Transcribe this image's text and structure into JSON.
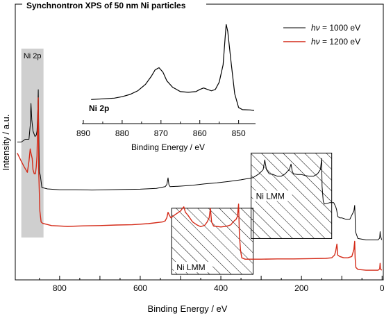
{
  "chart_data": {
    "type": "line",
    "title": "Synchnontron XPS of 50 nm Ni particles",
    "xlabel": "Binding Energy / eV",
    "ylabel": "Intensity / a.u.",
    "xlim": [
      910,
      -3
    ],
    "x_reversed": true,
    "ylim": [
      0,
      100
    ],
    "y_ticks_labeled": false,
    "x_ticks": [
      800,
      600,
      400,
      200,
      0
    ],
    "x_tick_labels": [
      "800",
      "600",
      "400",
      "200",
      "0"
    ],
    "legend_position": "top-right",
    "series": [
      {
        "name": "hν = 1000 eV",
        "name_prefix": "hν",
        "name_suffix": " = 1000 eV",
        "color": "#000000",
        "points": [
          [
            905,
            50
          ],
          [
            895,
            50
          ],
          [
            885,
            51
          ],
          [
            876,
            51
          ],
          [
            873,
            56
          ],
          [
            871,
            64
          ],
          [
            869,
            58
          ],
          [
            866,
            54
          ],
          [
            861,
            52
          ],
          [
            858,
            52.5
          ],
          [
            856,
            54
          ],
          [
            854,
            62
          ],
          [
            853,
            69
          ],
          [
            852,
            56
          ],
          [
            850,
            39
          ],
          [
            848,
            38
          ],
          [
            844,
            33.5
          ],
          [
            830,
            33
          ],
          [
            800,
            32.7
          ],
          [
            760,
            32.7
          ],
          [
            720,
            32.6
          ],
          [
            680,
            32.7
          ],
          [
            640,
            32.8
          ],
          [
            600,
            32.9
          ],
          [
            560,
            33.2
          ],
          [
            538,
            33.8
          ],
          [
            534,
            34.6
          ],
          [
            531,
            37
          ],
          [
            529,
            34.6
          ],
          [
            526,
            33.8
          ],
          [
            500,
            34
          ],
          [
            470,
            34.3
          ],
          [
            440,
            34.8
          ],
          [
            410,
            35.2
          ],
          [
            380,
            35.7
          ],
          [
            350,
            36.3
          ],
          [
            320,
            37.1
          ],
          [
            305,
            38.5
          ],
          [
            295,
            40
          ],
          [
            291,
            43.5
          ],
          [
            287,
            40
          ],
          [
            280,
            38.5
          ],
          [
            270,
            38.2
          ],
          [
            260,
            37.6
          ],
          [
            250,
            37.6
          ],
          [
            240,
            38.5
          ],
          [
            234,
            39.5
          ],
          [
            230,
            40
          ],
          [
            226,
            42
          ],
          [
            223,
            39.5
          ],
          [
            220,
            38.5
          ],
          [
            210,
            38.2
          ],
          [
            200,
            38.2
          ],
          [
            190,
            37.8
          ],
          [
            180,
            37.6
          ],
          [
            170,
            37.6
          ],
          [
            160,
            38.5
          ],
          [
            153,
            40
          ],
          [
            150,
            44
          ],
          [
            149,
            34
          ],
          [
            146,
            28.5
          ],
          [
            143,
            27.5
          ],
          [
            130,
            28
          ],
          [
            120,
            28
          ],
          [
            115,
            26.5
          ],
          [
            113,
            25.5
          ],
          [
            110,
            23
          ],
          [
            105,
            22.5
          ],
          [
            100,
            22.5
          ],
          [
            90,
            22
          ],
          [
            80,
            22
          ],
          [
            75,
            23.5
          ],
          [
            70,
            25
          ],
          [
            68,
            27
          ],
          [
            67,
            23
          ],
          [
            66,
            17.5
          ],
          [
            60,
            15
          ],
          [
            40,
            14.5
          ],
          [
            20,
            14.5
          ],
          [
            10,
            14.5
          ],
          [
            6,
            15.2
          ],
          [
            5,
            17.5
          ],
          [
            4,
            16
          ],
          [
            1,
            14.5
          ]
        ]
      },
      {
        "name": "hν = 1200 eV",
        "name_prefix": "hν",
        "name_suffix": " = 1200 eV",
        "color": "#d42a18",
        "points": [
          [
            905,
            46
          ],
          [
            895,
            43
          ],
          [
            888,
            41
          ],
          [
            880,
            39
          ],
          [
            876,
            43
          ],
          [
            873,
            47.5
          ],
          [
            871,
            46
          ],
          [
            868,
            44
          ],
          [
            866,
            40
          ],
          [
            863,
            38.5
          ],
          [
            860,
            38.5
          ],
          [
            858,
            41
          ],
          [
            856,
            45
          ],
          [
            854,
            60
          ],
          [
            853,
            66
          ],
          [
            852,
            40
          ],
          [
            849,
            25
          ],
          [
            846,
            21
          ],
          [
            842,
            20.5
          ],
          [
            820,
            19.7
          ],
          [
            780,
            19.4
          ],
          [
            740,
            19.6
          ],
          [
            700,
            19.7
          ],
          [
            660,
            19.9
          ],
          [
            620,
            20
          ],
          [
            580,
            20.4
          ],
          [
            545,
            21
          ],
          [
            538,
            21.4
          ],
          [
            534,
            22.6
          ],
          [
            531,
            24.5
          ],
          [
            528,
            23.5
          ],
          [
            524,
            22.5
          ],
          [
            515,
            23.5
          ],
          [
            505,
            24.5
          ],
          [
            500,
            25
          ],
          [
            495,
            26
          ],
          [
            492,
            26.5
          ],
          [
            488,
            24.5
          ],
          [
            482,
            23.5
          ],
          [
            470,
            21
          ],
          [
            460,
            20
          ],
          [
            450,
            19.3
          ],
          [
            440,
            19.8
          ],
          [
            434,
            21
          ],
          [
            429,
            22.5
          ],
          [
            426,
            26
          ],
          [
            423,
            21
          ],
          [
            418,
            19.5
          ],
          [
            410,
            19.4
          ],
          [
            400,
            19.2
          ],
          [
            390,
            19.4
          ],
          [
            382,
            19.6
          ],
          [
            375,
            20
          ],
          [
            370,
            21
          ],
          [
            366,
            21.5
          ],
          [
            362,
            22
          ],
          [
            359,
            23
          ],
          [
            356,
            27.5
          ],
          [
            354,
            16
          ],
          [
            351,
            10.5
          ],
          [
            348,
            8
          ],
          [
            340,
            7.5
          ],
          [
            300,
            7.5
          ],
          [
            260,
            7.6
          ],
          [
            220,
            7.6
          ],
          [
            180,
            7.7
          ],
          [
            140,
            7.8
          ],
          [
            125,
            8
          ],
          [
            118,
            9
          ],
          [
            115,
            10.5
          ],
          [
            112,
            13
          ],
          [
            110,
            9
          ],
          [
            105,
            8.5
          ],
          [
            95,
            8
          ],
          [
            85,
            8
          ],
          [
            75,
            8.5
          ],
          [
            70,
            11
          ],
          [
            68,
            14
          ],
          [
            67,
            8
          ],
          [
            65,
            4.5
          ],
          [
            60,
            3.8
          ],
          [
            40,
            3.5
          ],
          [
            20,
            3.5
          ],
          [
            10,
            3.5
          ],
          [
            6,
            4
          ],
          [
            5,
            6
          ],
          [
            4,
            4
          ],
          [
            1,
            3.5
          ]
        ]
      }
    ],
    "shaded_region": {
      "label": "Ni 2p",
      "x_range": [
        895,
        840
      ]
    },
    "annotations": [
      {
        "label": "Ni LMM",
        "x_range": [
          325,
          125
        ],
        "y_range": [
          15,
          46
        ]
      },
      {
        "label": "Ni LMM",
        "x_range": [
          522,
          320
        ],
        "y_range": [
          2,
          26
        ]
      }
    ],
    "inset": {
      "title": "Ni 2p",
      "xlabel": "Binding Energy / eV",
      "xlim": [
        890,
        846
      ],
      "x_ticks": [
        890,
        880,
        870,
        860,
        850
      ],
      "x_tick_labels": [
        "890",
        "880",
        "870",
        "860",
        "850"
      ],
      "series_color": "#000000",
      "points": [
        [
          888,
          8
        ],
        [
          885,
          8.5
        ],
        [
          882,
          9
        ],
        [
          880,
          10
        ],
        [
          878,
          11.5
        ],
        [
          876,
          14
        ],
        [
          874,
          18.5
        ],
        [
          872.5,
          24
        ],
        [
          871.5,
          28.5
        ],
        [
          870.5,
          30
        ],
        [
          869.5,
          27
        ],
        [
          868.5,
          21
        ],
        [
          867,
          16.5
        ],
        [
          865,
          13.5
        ],
        [
          863,
          13
        ],
        [
          861,
          13.5
        ],
        [
          860,
          15
        ],
        [
          859,
          16
        ],
        [
          858,
          15
        ],
        [
          857,
          14
        ],
        [
          856,
          15
        ],
        [
          855,
          20
        ],
        [
          854,
          32
        ],
        [
          853.5,
          50
        ],
        [
          853.2,
          60
        ],
        [
          852.8,
          55
        ],
        [
          852,
          35
        ],
        [
          851,
          12
        ],
        [
          850,
          2.5
        ],
        [
          849,
          1
        ],
        [
          847,
          0.8
        ],
        [
          846,
          0.5
        ]
      ]
    }
  }
}
